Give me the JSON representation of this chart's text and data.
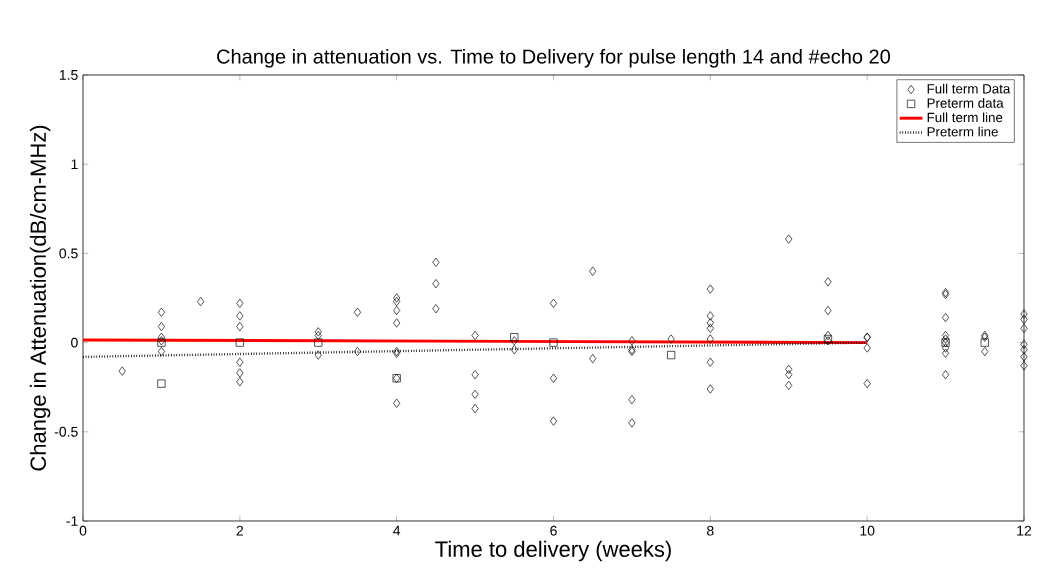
{
  "chart_data": {
    "type": "scatter",
    "title": "Change in attenuation vs. Time to Delivery for pulse length 14 and #echo 20",
    "xlabel": "Time to delivery (weeks)",
    "ylabel": "Change in Attenuation(dB/cm-MHz)",
    "xlim": [
      0,
      12
    ],
    "ylim": [
      -1,
      1.5
    ],
    "xticks": [
      0,
      2,
      4,
      6,
      8,
      10,
      12
    ],
    "yticks": [
      -1,
      -0.5,
      0,
      0.5,
      1,
      1.5
    ],
    "legend": "top right",
    "grid": false,
    "series": [
      {
        "name": "Full term Data",
        "marker": "diamond",
        "color": "#000000",
        "x": [
          0.5,
          1,
          1,
          1,
          1,
          1,
          1.5,
          2,
          2,
          2,
          2,
          2,
          2,
          3,
          3,
          3,
          3.5,
          3.5,
          4,
          4,
          4,
          4,
          4,
          4,
          4,
          4,
          4.5,
          4.5,
          4.5,
          5,
          5,
          5,
          5,
          5.5,
          5.5,
          6,
          6,
          6,
          6.5,
          6.5,
          7,
          7,
          7,
          7,
          7,
          7.5,
          8,
          8,
          8,
          8,
          8,
          8,
          8,
          9,
          9,
          9,
          9,
          9.5,
          9.5,
          9.5,
          9.5,
          10,
          10,
          10,
          10,
          11,
          11,
          11,
          11,
          11,
          11,
          11,
          11,
          11,
          11.5,
          11.5,
          11.5,
          12,
          12,
          12,
          12,
          12,
          12,
          12
        ],
        "values": [
          -0.16,
          0.17,
          0.09,
          0.03,
          0.01,
          -0.05,
          0.23,
          0.22,
          0.15,
          0.09,
          -0.11,
          -0.17,
          -0.22,
          0.06,
          0.04,
          -0.07,
          0.17,
          -0.05,
          0.25,
          0.23,
          0.18,
          0.11,
          -0.05,
          -0.06,
          -0.2,
          -0.34,
          0.45,
          0.33,
          0.19,
          0.04,
          -0.18,
          -0.29,
          -0.37,
          0.01,
          -0.04,
          0.22,
          -0.2,
          -0.44,
          0.4,
          -0.09,
          0.01,
          -0.04,
          -0.05,
          -0.32,
          -0.45,
          0.02,
          0.3,
          0.15,
          0.11,
          0.08,
          0.02,
          -0.11,
          -0.26,
          0.58,
          -0.15,
          -0.18,
          -0.24,
          0.34,
          0.18,
          0.04,
          0.01,
          0.03,
          0.03,
          -0.03,
          -0.23,
          0.28,
          0.27,
          0.14,
          0.04,
          0.02,
          0.0,
          -0.03,
          -0.06,
          -0.18,
          0.04,
          0.03,
          -0.05,
          0.16,
          0.13,
          0.08,
          -0.01,
          -0.04,
          -0.08,
          -0.13
        ]
      },
      {
        "name": "Preterm data",
        "marker": "square",
        "color": "#000000",
        "x": [
          1,
          1,
          2,
          3,
          4,
          5.5,
          6,
          7.5,
          9.5,
          11,
          11.5
        ],
        "values": [
          0.0,
          -0.23,
          0.0,
          0.0,
          -0.2,
          0.03,
          0.0,
          -0.07,
          0.02,
          0.0,
          0.0
        ]
      },
      {
        "name": "Full term line",
        "type": "line",
        "line_style": "solid",
        "color": "#ff0000",
        "x": [
          0,
          10
        ],
        "values": [
          0.015,
          0.0
        ]
      },
      {
        "name": "Preterm line",
        "type": "line",
        "line_style": "dotted",
        "color": "#000000",
        "x": [
          0,
          10
        ],
        "values": [
          -0.08,
          0.0
        ]
      }
    ]
  }
}
